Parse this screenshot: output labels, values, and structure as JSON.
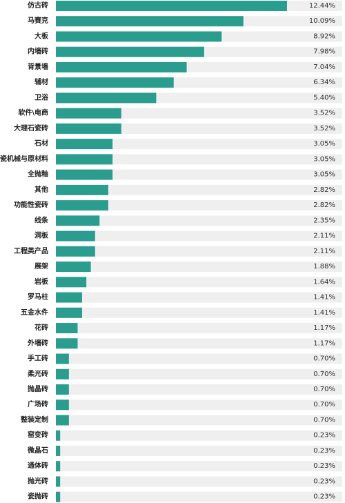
{
  "chart_data": {
    "type": "bar",
    "orientation": "horizontal",
    "title": "",
    "xlabel": "",
    "ylabel": "",
    "xlim": [
      0,
      12.44
    ],
    "grid": false,
    "legend": "none",
    "bar_color": "#2a9d8f",
    "track_color": "#efefef",
    "value_suffix": "%",
    "categories": [
      "仿古砖",
      "马赛克",
      "大板",
      "内墙砖",
      "背景墙",
      "辅材",
      "卫浴",
      "软件\\电商",
      "大理石瓷砖",
      "石材",
      "陶瓷机械与原材料",
      "全抛釉",
      "其他",
      "功能性瓷砖",
      "线条",
      "洞板",
      "工程类产品",
      "展架",
      "岩板",
      "罗马柱",
      "五金水件",
      "花砖",
      "外墙砖",
      "手工砖",
      "柔光砖",
      "抛晶砖",
      "广场砖",
      "整装定制",
      "窑变砖",
      "微晶石",
      "通体砖",
      "抛光砖",
      "瓷抛砖"
    ],
    "values": [
      12.44,
      10.09,
      8.92,
      7.98,
      7.04,
      6.34,
      5.4,
      3.52,
      3.52,
      3.05,
      3.05,
      3.05,
      2.82,
      2.82,
      2.35,
      2.11,
      2.11,
      1.88,
      1.64,
      1.41,
      1.41,
      1.17,
      1.17,
      0.7,
      0.7,
      0.7,
      0.7,
      0.7,
      0.23,
      0.23,
      0.23,
      0.23,
      0.23
    ],
    "value_labels": [
      "12.44%",
      "10.09%",
      "8.92%",
      "7.98%",
      "7.04%",
      "6.34%",
      "5.40%",
      "3.52%",
      "3.52%",
      "3.05%",
      "3.05%",
      "3.05%",
      "2.82%",
      "2.82%",
      "2.35%",
      "2.11%",
      "2.11%",
      "1.88%",
      "1.64%",
      "1.41%",
      "1.41%",
      "1.17%",
      "1.17%",
      "0.70%",
      "0.70%",
      "0.70%",
      "0.70%",
      "0.70%",
      "0.23%",
      "0.23%",
      "0.23%",
      "0.23%",
      "0.23%"
    ]
  }
}
